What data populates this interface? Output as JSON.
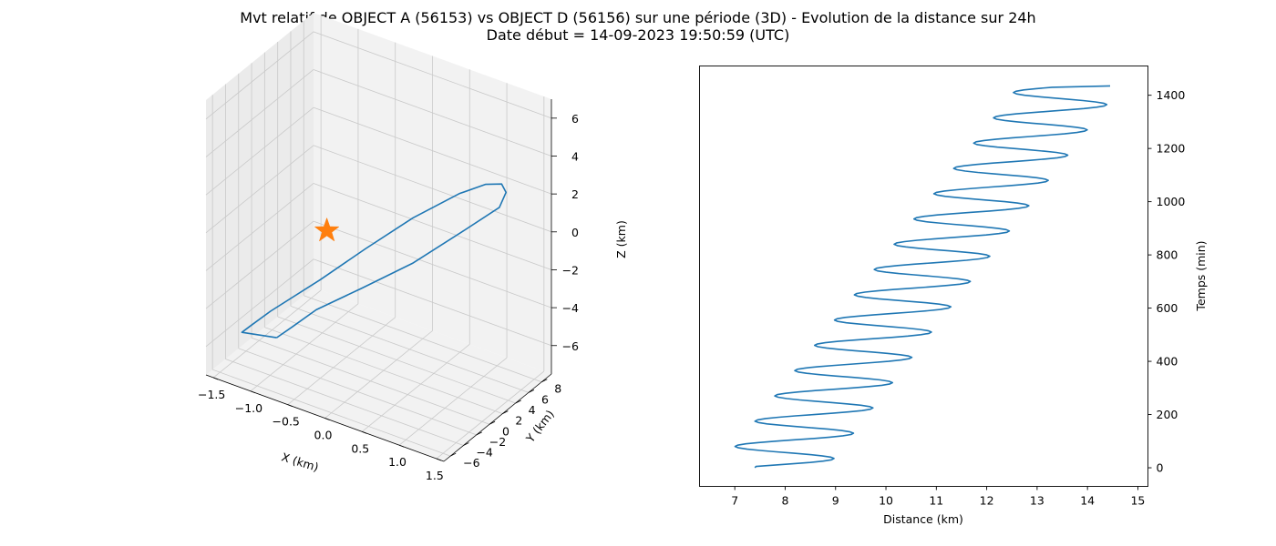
{
  "title_line1": "Mvt relatif de OBJECT A (56153) vs OBJECT D (56156) sur une période (3D) - Evolution de la distance sur 24h",
  "title_line2": "Date début = 14-09-2023 19:50:59 (UTC)",
  "colors": {
    "line": "#1f77b4",
    "marker": "#ff7f0e"
  },
  "chart_data": [
    {
      "type": "line",
      "projection": "3d",
      "xlabel": "X (km)",
      "ylabel": "Y (km)",
      "zlabel": "Z (km)",
      "x_ticks": [
        "−1.5",
        "−1.0",
        "−0.5",
        "0.0",
        "0.5",
        "1.0",
        "1.5"
      ],
      "y_ticks": [
        "−6",
        "−4",
        "−2",
        "0",
        "2",
        "4",
        "6",
        "8"
      ],
      "z_ticks": [
        "−6",
        "−4",
        "−2",
        "0",
        "2",
        "4",
        "6"
      ],
      "xlim": [
        -1.6,
        1.6
      ],
      "ylim": [
        -7,
        9.5
      ],
      "zlim": [
        -7.5,
        7
      ],
      "grid": true,
      "marker_point": {
        "x": -0.5,
        "y": -1,
        "z": 0,
        "shape": "star"
      },
      "series": [
        {
          "points": [
            [
              -1.0,
              -3.0,
              -5.8
            ],
            [
              -1.45,
              -3.2,
              -6.1
            ],
            [
              -1.4,
              -2.4,
              -5.9
            ],
            [
              -1.1,
              -2.8,
              -4.6
            ],
            [
              -0.5,
              -2.0,
              -2.3
            ],
            [
              0.0,
              -0.8,
              -0.3
            ],
            [
              0.5,
              0.8,
              1.6
            ],
            [
              1.0,
              2.2,
              3.2
            ],
            [
              1.3,
              2.8,
              3.95
            ],
            [
              1.5,
              3.0,
              4.2
            ],
            [
              1.55,
              3.1,
              3.8
            ],
            [
              1.4,
              3.8,
              2.6
            ],
            [
              0.9,
              3.9,
              0.6
            ],
            [
              0.3,
              3.0,
              -1.7
            ],
            [
              -0.3,
              2.0,
              -3.6
            ],
            [
              -0.8,
              0.8,
              -5.1
            ],
            [
              -1.0,
              -0.5,
              -5.9
            ],
            [
              -1.0,
              -3.0,
              -5.8
            ]
          ]
        }
      ]
    },
    {
      "type": "line",
      "xlabel": "Distance (km)",
      "ylabel": "Temps (min)",
      "x_ticks": [
        7,
        8,
        9,
        10,
        11,
        12,
        13,
        14,
        15
      ],
      "y_ticks": [
        0,
        200,
        400,
        600,
        800,
        1000,
        1200,
        1400
      ],
      "xlim": [
        6.3,
        15.2
      ],
      "ylim": [
        -70,
        1510
      ],
      "grid": false,
      "y_axis_side": "right",
      "series": [
        {
          "oscillation": {
            "t_start": 0,
            "t_end": 1435,
            "t_step": 5,
            "period_min": 95,
            "center_start_km": 7.75,
            "center_end_km": 13.65,
            "amplitude_start_km": 1.08,
            "amplitude_end_km": 1.02,
            "start_distance_km": 7.4,
            "end_distance_km": 14.45
          }
        }
      ]
    }
  ]
}
